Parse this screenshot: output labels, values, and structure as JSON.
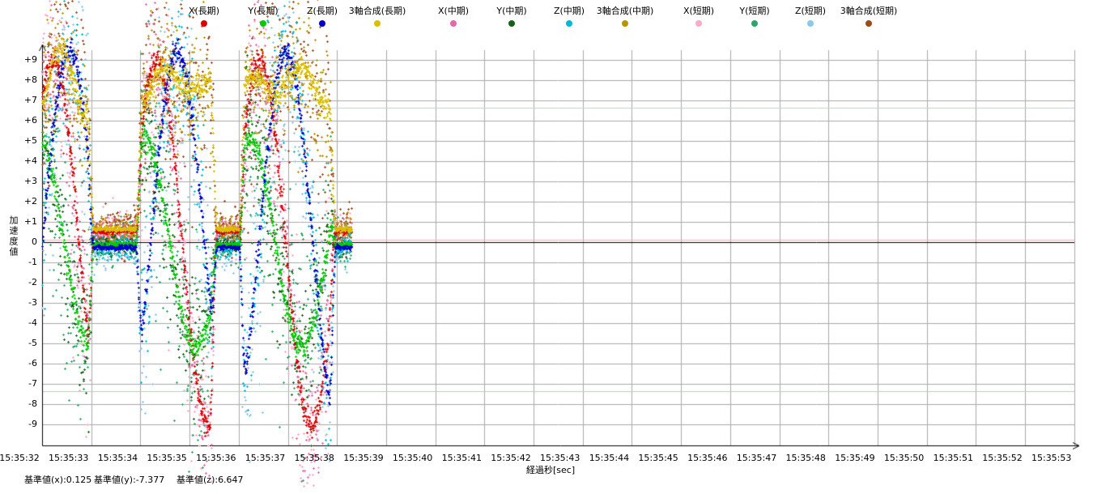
{
  "page": {
    "background": "#ffffff",
    "grid_color": "#a9a9a9",
    "axis_color": "#000000"
  },
  "legend": {
    "items": [
      {
        "label": "X(長期)",
        "color": "#dc0000"
      },
      {
        "label": "Y(長期)",
        "color": "#00cc00"
      },
      {
        "label": "Z(長期)",
        "color": "#0000cc"
      },
      {
        "label": "3軸合成(長期)",
        "color": "#dcbe00"
      },
      {
        "label": "X(中期)",
        "color": "#e668a8"
      },
      {
        "label": "Y(中期)",
        "color": "#176117"
      },
      {
        "label": "Z(中期)",
        "color": "#00b8d8"
      },
      {
        "label": "3軸合成(中期)",
        "color": "#b89400"
      },
      {
        "label": "X(短期)",
        "color": "#ffaac8"
      },
      {
        "label": "Y(短期)",
        "color": "#2ea668"
      },
      {
        "label": "Z(短期)",
        "color": "#8cc8e8"
      },
      {
        "label": "3軸合成(短期)",
        "color": "#9c4a1e"
      }
    ]
  },
  "footer": {
    "baselines": [
      {
        "text": "基準値(x):0.125"
      },
      {
        "text": "基準値(y):-7.377"
      },
      {
        "text": "基準値(z):6.647"
      }
    ]
  },
  "chart_data": {
    "type": "scatter",
    "title": "",
    "xlabel": "経過秒[sec]",
    "ylabel": "加速度値",
    "marker": "plus",
    "grid": true,
    "ylim": [
      -9,
      9
    ],
    "y_tick_values": [
      9,
      8,
      7,
      6,
      5,
      4,
      3,
      2,
      1,
      0,
      -1,
      -2,
      -3,
      -4,
      -5,
      -6,
      -7,
      -8,
      -9
    ],
    "y_tick_labels": [
      "+9",
      "+8",
      "+7",
      "+6",
      "+5",
      "+4",
      "+3",
      "+2",
      "+1",
      "0",
      "-1",
      "-2",
      "-3",
      "-4",
      "-5",
      "-6",
      "-7",
      "-8",
      "-9"
    ],
    "x_tick_labels": [
      "15:35:32",
      "15:35:33",
      "15:35:34",
      "15:35:35",
      "15:35:36",
      "15:35:37",
      "15:35:38",
      "15:35:39",
      "15:35:40",
      "15:35:41",
      "15:35:42",
      "15:35:43",
      "15:35:44",
      "15:35:45",
      "15:35:46",
      "15:35:47",
      "15:35:48",
      "15:35:49",
      "15:35:50",
      "15:35:51",
      "15:35:52",
      "15:35:53"
    ],
    "seconds_per_division": 1,
    "reference_lines": [
      {
        "name": "基準値(x)",
        "value": 0.125,
        "color": "#f2b4b4"
      },
      {
        "name": "基準値(y)",
        "value": -7.377,
        "color": "#a0e0a0"
      },
      {
        "name": "基準値(z)",
        "value": 6.647,
        "color": "#a8d8e8"
      }
    ],
    "series": [
      {
        "name": "X(長期)",
        "axis": "x",
        "tier": "long",
        "color": "#dc0000",
        "noise_sigma": 0.3
      },
      {
        "name": "Y(長期)",
        "axis": "y",
        "tier": "long",
        "color": "#00cc00",
        "noise_sigma": 0.3
      },
      {
        "name": "Z(長期)",
        "axis": "z",
        "tier": "long",
        "color": "#0000cc",
        "noise_sigma": 0.3
      },
      {
        "name": "3軸合成(長期)",
        "axis": "composite",
        "tier": "long",
        "color": "#dcbe00",
        "noise_sigma": 0.3
      },
      {
        "name": "X(中期)",
        "axis": "x",
        "tier": "mid",
        "color": "#e668a8",
        "noise_sigma": 1.7
      },
      {
        "name": "Y(中期)",
        "axis": "y",
        "tier": "mid",
        "color": "#176117",
        "noise_sigma": 1.7
      },
      {
        "name": "Z(中期)",
        "axis": "z",
        "tier": "mid",
        "color": "#00b8d8",
        "noise_sigma": 1.7
      },
      {
        "name": "3軸合成(中期)",
        "axis": "composite",
        "tier": "mid",
        "color": "#b89400",
        "noise_sigma": 1.7
      },
      {
        "name": "X(短期)",
        "axis": "x",
        "tier": "short",
        "color": "#ffaac8",
        "noise_sigma": 3.0
      },
      {
        "name": "Y(短期)",
        "axis": "y",
        "tier": "short",
        "color": "#2ea668",
        "noise_sigma": 3.0
      },
      {
        "name": "Z(短期)",
        "axis": "z",
        "tier": "short",
        "color": "#8cc8e8",
        "noise_sigma": 3.0
      },
      {
        "name": "3軸合成(短期)",
        "axis": "composite",
        "tier": "short",
        "color": "#9c4a1e",
        "noise_sigma": 3.0
      }
    ],
    "waves": {
      "x": {
        "amplitude": 9.0,
        "period": 2.1,
        "peak_time": 2.32
      },
      "y": {
        "amplitude": 5.2,
        "period": 2.15,
        "peak_time": 2.05
      },
      "z": {
        "amplitude": 9.4,
        "period": 2.2,
        "peak_time": 0.55
      },
      "composite": {
        "derived": "sqrt(x^2+y^2+z^2)-2"
      }
    },
    "time_span_sec": {
      "start": 0,
      "end": 6.3
    },
    "point_step_sec": {
      "long": 0.006,
      "mid": 0.009,
      "short": 0.009
    },
    "quiet_windows": [
      [
        1.05,
        1.9
      ],
      [
        3.55,
        4.0
      ],
      [
        5.97,
        6.3
      ]
    ],
    "quiet_baseline": {
      "x": 0.55,
      "y": -0.1,
      "z": -0.25,
      "composite": 0.65
    },
    "quiet_noise_scale": 0.18
  }
}
